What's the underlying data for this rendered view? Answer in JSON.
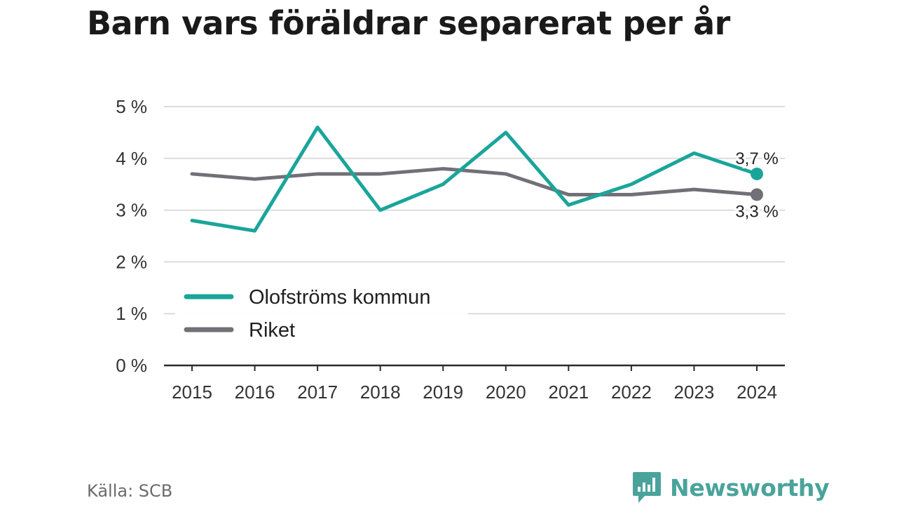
{
  "title": "Barn vars föräldrar separerat per år",
  "source": "Källa: SCB",
  "brand": {
    "name": "Newsworthy",
    "icon": "newsworthy-logo-icon",
    "color": "#4aa39b"
  },
  "chart_data": {
    "type": "line",
    "x": [
      "2015",
      "2016",
      "2017",
      "2018",
      "2019",
      "2020",
      "2021",
      "2022",
      "2023",
      "2024"
    ],
    "y_ticks": [
      "0 %",
      "1 %",
      "2 %",
      "3 %",
      "4 %",
      "5 %"
    ],
    "ylim": [
      0,
      5
    ],
    "grid": true,
    "legend_placement": "left-middle",
    "series": [
      {
        "name": "Olofströms kommun",
        "color": "#1aa59a",
        "values": [
          2.8,
          2.6,
          4.6,
          3.0,
          3.5,
          4.5,
          3.1,
          3.5,
          4.1,
          3.7
        ],
        "end_label": "3,7 %"
      },
      {
        "name": "Riket",
        "color": "#717077",
        "values": [
          3.7,
          3.6,
          3.7,
          3.7,
          3.8,
          3.7,
          3.3,
          3.3,
          3.4,
          3.3
        ],
        "end_label": "3,3 %"
      }
    ]
  }
}
